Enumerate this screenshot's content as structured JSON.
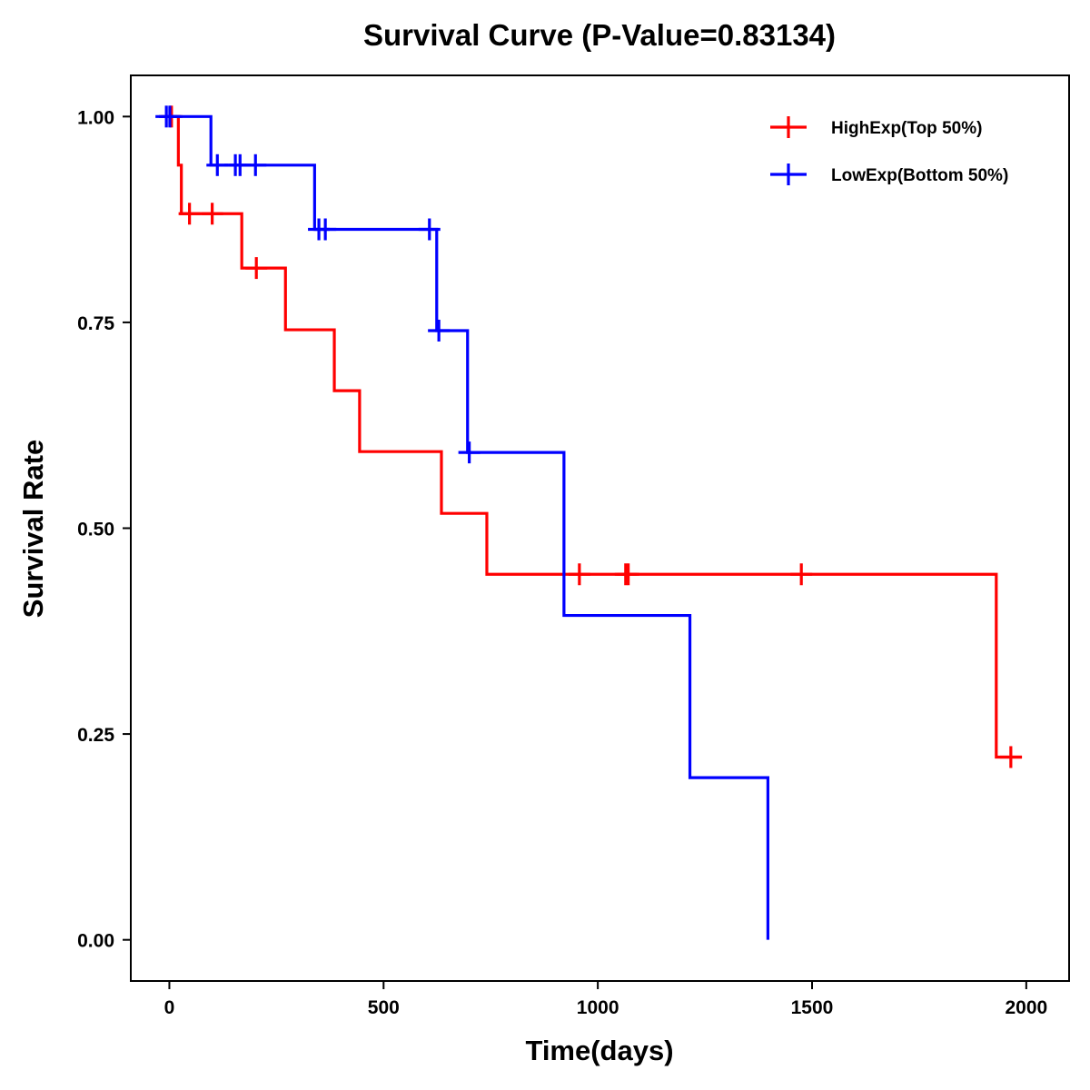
{
  "chart_data": {
    "type": "line",
    "subtype": "kaplan-meier-step",
    "title": "Survival Curve (P-Value=0.83134)",
    "xlabel": "Time(days)",
    "ylabel": "Survival Rate",
    "xlim": [
      -90,
      2100
    ],
    "ylim": [
      -0.05,
      1.05
    ],
    "x_ticks": [
      0,
      500,
      1000,
      1500,
      2000
    ],
    "x_tick_labels": [
      "0",
      "500",
      "1000",
      "1500",
      "2000"
    ],
    "y_ticks": [
      0,
      0.25,
      0.5,
      0.75,
      1.0
    ],
    "y_tick_labels": [
      "0.00",
      "0.25",
      "0.50",
      "0.75",
      "1.00"
    ],
    "grid": false,
    "legend_position": "top-right",
    "series": [
      {
        "name": "HighExp(Top 50%)",
        "color": "#ff0000",
        "steps": [
          {
            "time": 0,
            "survival": 1.0
          },
          {
            "time": 21,
            "survival": 0.941
          },
          {
            "time": 28,
            "survival": 0.882
          },
          {
            "time": 169,
            "survival": 0.816
          },
          {
            "time": 271,
            "survival": 0.741
          },
          {
            "time": 385,
            "survival": 0.667
          },
          {
            "time": 444,
            "survival": 0.593
          },
          {
            "time": 635,
            "survival": 0.518
          },
          {
            "time": 741,
            "survival": 0.444
          },
          {
            "time": 1930,
            "survival": 0.222
          }
        ],
        "end_time": 1990,
        "censored": [
          {
            "time": 5,
            "survival": 1.0
          },
          {
            "time": 47,
            "survival": 0.882
          },
          {
            "time": 100,
            "survival": 0.882
          },
          {
            "time": 203,
            "survival": 0.816
          },
          {
            "time": 957,
            "survival": 0.444
          },
          {
            "time": 1065,
            "survival": 0.444
          },
          {
            "time": 1071,
            "survival": 0.444
          },
          {
            "time": 1475,
            "survival": 0.444
          },
          {
            "time": 1964,
            "survival": 0.222
          }
        ]
      },
      {
        "name": "LowExp(Bottom 50%)",
        "color": "#0000ff",
        "steps": [
          {
            "time": 0,
            "survival": 1.0
          },
          {
            "time": 97,
            "survival": 0.941
          },
          {
            "time": 339,
            "survival": 0.863
          },
          {
            "time": 624,
            "survival": 0.74
          },
          {
            "time": 696,
            "survival": 0.592
          },
          {
            "time": 921,
            "survival": 0.394
          },
          {
            "time": 1215,
            "survival": 0.197
          },
          {
            "time": 1397,
            "survival": 0.0
          }
        ],
        "end_time": 1397,
        "censored": [
          {
            "time": -7,
            "survival": 1.0
          },
          {
            "time": 1,
            "survival": 1.0
          },
          {
            "time": 112,
            "survival": 0.941
          },
          {
            "time": 154,
            "survival": 0.941
          },
          {
            "time": 165,
            "survival": 0.941
          },
          {
            "time": 201,
            "survival": 0.941
          },
          {
            "time": 349,
            "survival": 0.863
          },
          {
            "time": 364,
            "survival": 0.863
          },
          {
            "time": 607,
            "survival": 0.863
          },
          {
            "time": 629,
            "survival": 0.74
          },
          {
            "time": 700,
            "survival": 0.592
          }
        ]
      }
    ]
  }
}
